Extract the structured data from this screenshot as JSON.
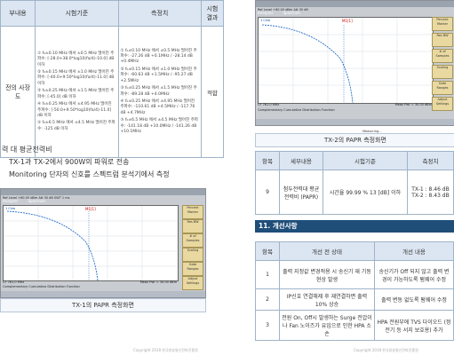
{
  "left": {
    "table": {
      "headers": [
        "부내용",
        "시험기준",
        "측정치",
        "시험 결과"
      ],
      "row_item": "전의 사장도",
      "standards": [
        "① f₀±0.10 MHz 에서 ±0.5 MHz 떨어진 주파수: [-28.0+38.0*log10(fa/4)-10.0] dB 이하",
        "② f₀±0.15 MHz 에서 ±1.0 MHz 떨어진 주파수: [-40.0+9.50*log10(fa/4)-11.0] dB 이하",
        "③ f₀±0.25 MHz 에서 ±1.5 MHz 떨어진 주파수: [-45.0] dB 이하",
        "④ f₀±0.25 MHz 에서 ±4.95 MHz 떨어진 주파수: [-50.0+9.50*log10(fa/4)-11.0] dB 이하",
        "⑤ f₀±6.5 MHz 에서 ±4.5 MHz 떨어진 주파수: -125 dB 이하"
      ],
      "measurements": [
        "① f₀±0.10 MHz 에서 ±0.5 MHz 떨어진 주파수: -27.26 dB +0.1MHz / -28.14 dB +0.4MHz",
        "② f₀±0.15 MHz 에서 ±1.0 MHz 떨어진 주파수: -60.63 dB +1.5MHz / -95.27 dB +2.5MHz",
        "③ f₀±0.25 MHz 에서 ±1.5 MHz 떨어진 주파수: -89.28 dB +4.0MHz",
        "④ f₀±0.25 MHz 에서 ±4.95 MHz 떨어진 주파수: -110.61 dB +4.5MHz / -117.76 dB +4.7MHz",
        "⑤ f₀±6.5 MHz 에서 ±4.5 MHz 떨어진 주파수: -141.18 dB +10.0MHz / -141.26 dB +10.1MHz"
      ],
      "result": "적합"
    },
    "para_lines": [
      "력 대 평균전력비",
      "TX-1과 TX-2에서 900W의 파워로 전송",
      "Monitoring 단자의 신호를 스펙트럼 분석기에서 측정"
    ],
    "caption": "TX-1의 PAPR 측정화면",
    "copyright": "Copyright 2018 한국방송통신전파진흥원"
  },
  "analyzer": {
    "brand": "Analyzer",
    "mode": "Spectrum",
    "ref_label": "Ref Level",
    "ref_value": "+60.00 dBm",
    "att_label": "Att",
    "att_value": "30 dB",
    "sweep_label": "SWT",
    "sweep_value": "1 ms",
    "trace": "1 Clrw",
    "marker": "M1[1]",
    "freq_start": "CF 761.0 MHz",
    "bottom_title": "Complementary Cumulative Distribution Function",
    "meas_time": "Mean Pwr = 30.00 dBm",
    "status": "Measuring...",
    "side_buttons": [
      "Percent Marker",
      "Res BW",
      "# of Samples",
      "Scaling",
      "Adjust Settings",
      "Gate Ranges",
      "Adjust Settings"
    ]
  },
  "right": {
    "caption": "TX-2의 PAPR 측정화면",
    "table1": {
      "headers": [
        "항목",
        "세부내용",
        "시험기준",
        "측정치"
      ],
      "row": {
        "no": "9",
        "item": "첨두전력대 평균전력비 (PAPR)",
        "standard": "시간율 99.99 % 13 [dB] 이하",
        "meas": [
          "TX-1 : 8.46 dB",
          "TX-2 : 8.43 dB"
        ]
      }
    },
    "section_title": "11. 개선사항",
    "table2": {
      "headers": [
        "항목",
        "개선 전 상태",
        "개선 내용"
      ],
      "rows": [
        {
          "no": "1",
          "before": "출력 지정값 변경적용 시 송신기 재 기동 현상 발생",
          "after": "송신기가 Off 되지 않고 출력 변경이 가능하도록 펌웨어 수정"
        },
        {
          "no": "2",
          "before": "IP신호 연결해제 후 재연결하면 출력 10% 상승",
          "after": "출력 변동 없도록 펌웨어 수정"
        },
        {
          "no": "3",
          "before": "전원 On, Off시 발생하는 Surge 전압이나 Fan 노이즈가 유입으로 인한 HPA 소손",
          "after": "HPA 전원부에 TVS 다이오드 (정전기 등 서지 보호용) 추가"
        }
      ]
    },
    "copyright": "Copyright 2018 한국방송통신전파진흥원"
  }
}
